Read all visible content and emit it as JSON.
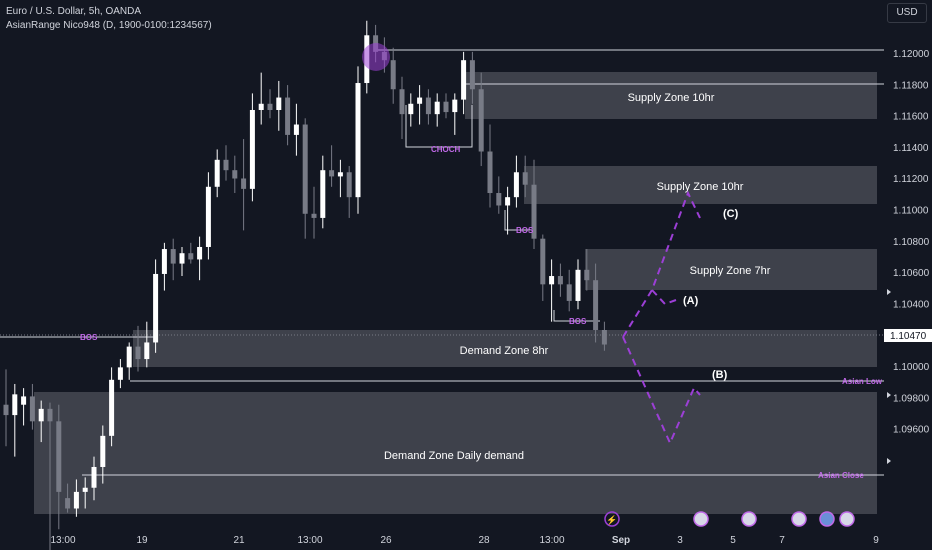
{
  "header": {
    "symbol_line": "Euro / U.S. Dollar, 5h, OANDA",
    "indicator_line": "AsianRange Nico948 (D, 1900-0100:1234567)"
  },
  "currency_button": "USD",
  "colors": {
    "background": "#131722",
    "bull": "#ffffff",
    "bear": "#787b86",
    "zone": "#4a4c56",
    "accent": "#9c3fd6",
    "text": "#d1d4dc"
  },
  "price_axis": {
    "ticks": [
      "1.12000",
      "1.11800",
      "1.11600",
      "1.11400",
      "1.11200",
      "1.11000",
      "1.10800",
      "1.10600",
      "1.10400",
      "1.10200",
      "1.10000",
      "1.09800",
      "1.09600"
    ],
    "current_price": "1.10470"
  },
  "time_axis": {
    "labels": [
      "13:00",
      "19",
      "21",
      "13:00",
      "26",
      "28",
      "13:00",
      "Sep",
      "3",
      "5",
      "7",
      "9"
    ]
  },
  "zones": {
    "supply1": "Supply Zone 10hr",
    "supply2": "Supply Zone 10hr",
    "supply3": "Supply Zone 7hr",
    "demand1": "Demand Zone 8hr",
    "demand2": "Demand Zone Daily demand"
  },
  "annotations": {
    "choch": "CHOCH",
    "bos1": "BOS",
    "bos2": "BOS",
    "bos3": "BOS",
    "a": "(A)",
    "b": "(B)",
    "c": "(C)",
    "asian_low": "Asian Low",
    "asian_close": "Asian Close"
  },
  "chart_data": {
    "type": "candlestick",
    "ylim": [
      1.095,
      1.1215
    ],
    "series": [
      {
        "o": 1.102,
        "h": 1.1037,
        "l": 1.1,
        "c": 1.1015
      },
      {
        "o": 1.1015,
        "h": 1.103,
        "l": 1.0995,
        "c": 1.1025
      },
      {
        "o": 1.102,
        "h": 1.1028,
        "l": 1.101,
        "c": 1.1024
      },
      {
        "o": 1.1024,
        "h": 1.103,
        "l": 1.1008,
        "c": 1.1012
      },
      {
        "o": 1.1012,
        "h": 1.1022,
        "l": 1.1002,
        "c": 1.1018
      },
      {
        "o": 1.1018,
        "h": 1.1021,
        "l": 1.095,
        "c": 1.1012
      },
      {
        "o": 1.1012,
        "h": 1.102,
        "l": 1.096,
        "c": 1.0978
      },
      {
        "o": 1.0975,
        "h": 1.0982,
        "l": 1.0968,
        "c": 1.097
      },
      {
        "o": 1.097,
        "h": 1.0984,
        "l": 1.0966,
        "c": 1.0978
      },
      {
        "o": 1.0978,
        "h": 1.0985,
        "l": 1.097,
        "c": 1.098
      },
      {
        "o": 1.098,
        "h": 1.0995,
        "l": 1.0974,
        "c": 1.099
      },
      {
        "o": 1.099,
        "h": 1.101,
        "l": 1.0982,
        "c": 1.1005
      },
      {
        "o": 1.1005,
        "h": 1.1038,
        "l": 1.1,
        "c": 1.1032
      },
      {
        "o": 1.1032,
        "h": 1.1042,
        "l": 1.1028,
        "c": 1.1038
      },
      {
        "o": 1.1038,
        "h": 1.105,
        "l": 1.1032,
        "c": 1.1048
      },
      {
        "o": 1.1048,
        "h": 1.1058,
        "l": 1.1036,
        "c": 1.1042
      },
      {
        "o": 1.1042,
        "h": 1.106,
        "l": 1.1038,
        "c": 1.105
      },
      {
        "o": 1.105,
        "h": 1.109,
        "l": 1.1045,
        "c": 1.1083
      },
      {
        "o": 1.1083,
        "h": 1.1098,
        "l": 1.1075,
        "c": 1.1095
      },
      {
        "o": 1.1095,
        "h": 1.11,
        "l": 1.108,
        "c": 1.1088
      },
      {
        "o": 1.1088,
        "h": 1.1096,
        "l": 1.1082,
        "c": 1.1093
      },
      {
        "o": 1.1093,
        "h": 1.1098,
        "l": 1.1088,
        "c": 1.109
      },
      {
        "o": 1.109,
        "h": 1.1101,
        "l": 1.108,
        "c": 1.1096
      },
      {
        "o": 1.1096,
        "h": 1.1132,
        "l": 1.109,
        "c": 1.1125
      },
      {
        "o": 1.1125,
        "h": 1.1143,
        "l": 1.112,
        "c": 1.1138
      },
      {
        "o": 1.1138,
        "h": 1.1145,
        "l": 1.1128,
        "c": 1.1133
      },
      {
        "o": 1.1133,
        "h": 1.114,
        "l": 1.1122,
        "c": 1.1129
      },
      {
        "o": 1.1129,
        "h": 1.1148,
        "l": 1.1104,
        "c": 1.1124
      },
      {
        "o": 1.1124,
        "h": 1.117,
        "l": 1.1118,
        "c": 1.1162
      },
      {
        "o": 1.1162,
        "h": 1.118,
        "l": 1.1155,
        "c": 1.1165
      },
      {
        "o": 1.1165,
        "h": 1.1172,
        "l": 1.1158,
        "c": 1.1162
      },
      {
        "o": 1.1162,
        "h": 1.1176,
        "l": 1.1152,
        "c": 1.1168
      },
      {
        "o": 1.1168,
        "h": 1.1174,
        "l": 1.1145,
        "c": 1.115
      },
      {
        "o": 1.115,
        "h": 1.1165,
        "l": 1.114,
        "c": 1.1155
      },
      {
        "o": 1.1155,
        "h": 1.1158,
        "l": 1.11,
        "c": 1.1112
      },
      {
        "o": 1.1112,
        "h": 1.1125,
        "l": 1.11,
        "c": 1.111
      },
      {
        "o": 1.111,
        "h": 1.114,
        "l": 1.1105,
        "c": 1.1133
      },
      {
        "o": 1.1133,
        "h": 1.1145,
        "l": 1.1125,
        "c": 1.113
      },
      {
        "o": 1.113,
        "h": 1.1138,
        "l": 1.112,
        "c": 1.1132
      },
      {
        "o": 1.1132,
        "h": 1.1135,
        "l": 1.111,
        "c": 1.112
      },
      {
        "o": 1.112,
        "h": 1.1183,
        "l": 1.1112,
        "c": 1.1175
      },
      {
        "o": 1.1175,
        "h": 1.1205,
        "l": 1.117,
        "c": 1.1198
      },
      {
        "o": 1.1198,
        "h": 1.1203,
        "l": 1.1185,
        "c": 1.119
      },
      {
        "o": 1.119,
        "h": 1.1197,
        "l": 1.118,
        "c": 1.1186
      },
      {
        "o": 1.1186,
        "h": 1.1192,
        "l": 1.1165,
        "c": 1.1172
      },
      {
        "o": 1.1172,
        "h": 1.1178,
        "l": 1.1148,
        "c": 1.116
      },
      {
        "o": 1.116,
        "h": 1.117,
        "l": 1.1154,
        "c": 1.1165
      },
      {
        "o": 1.1165,
        "h": 1.1174,
        "l": 1.1155,
        "c": 1.1168
      },
      {
        "o": 1.1168,
        "h": 1.1172,
        "l": 1.1155,
        "c": 1.116
      },
      {
        "o": 1.116,
        "h": 1.117,
        "l": 1.1154,
        "c": 1.1166
      },
      {
        "o": 1.1166,
        "h": 1.117,
        "l": 1.1158,
        "c": 1.1161
      },
      {
        "o": 1.1161,
        "h": 1.117,
        "l": 1.115,
        "c": 1.1167
      },
      {
        "o": 1.1167,
        "h": 1.119,
        "l": 1.116,
        "c": 1.1186
      },
      {
        "o": 1.1186,
        "h": 1.119,
        "l": 1.1165,
        "c": 1.1172
      },
      {
        "o": 1.1172,
        "h": 1.118,
        "l": 1.1135,
        "c": 1.1142
      },
      {
        "o": 1.1142,
        "h": 1.1155,
        "l": 1.1115,
        "c": 1.1122
      },
      {
        "o": 1.1122,
        "h": 1.113,
        "l": 1.1112,
        "c": 1.1116
      },
      {
        "o": 1.1116,
        "h": 1.1125,
        "l": 1.1102,
        "c": 1.112
      },
      {
        "o": 1.112,
        "h": 1.114,
        "l": 1.1115,
        "c": 1.1132
      },
      {
        "o": 1.1132,
        "h": 1.114,
        "l": 1.112,
        "c": 1.1126
      },
      {
        "o": 1.1126,
        "h": 1.1138,
        "l": 1.1095,
        "c": 1.11
      },
      {
        "o": 1.11,
        "h": 1.1102,
        "l": 1.107,
        "c": 1.1078
      },
      {
        "o": 1.1078,
        "h": 1.109,
        "l": 1.106,
        "c": 1.1082
      },
      {
        "o": 1.1082,
        "h": 1.1088,
        "l": 1.1072,
        "c": 1.1078
      },
      {
        "o": 1.1078,
        "h": 1.1085,
        "l": 1.1065,
        "c": 1.107
      },
      {
        "o": 1.107,
        "h": 1.109,
        "l": 1.1066,
        "c": 1.1085
      },
      {
        "o": 1.1085,
        "h": 1.1095,
        "l": 1.1075,
        "c": 1.108
      },
      {
        "o": 1.108,
        "h": 1.1088,
        "l": 1.105,
        "c": 1.1056
      },
      {
        "o": 1.1056,
        "h": 1.106,
        "l": 1.1046,
        "c": 1.1049
      }
    ]
  }
}
